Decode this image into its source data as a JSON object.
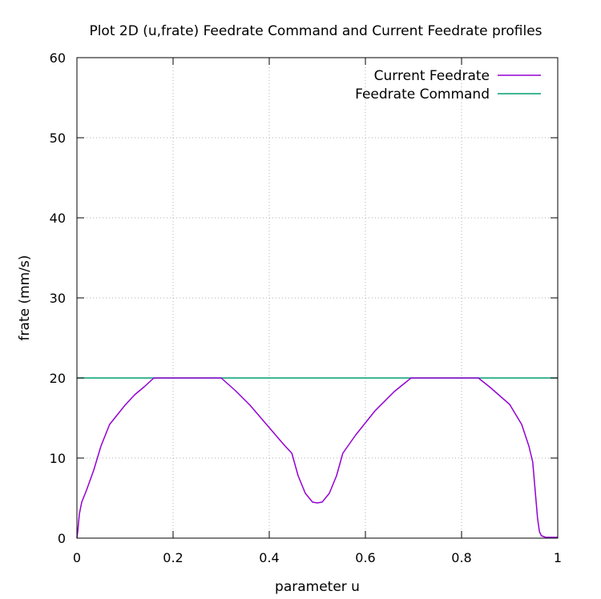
{
  "chart_data": {
    "type": "line",
    "title": "Plot 2D (u,frate) Feedrate Command and Current Feedrate profiles",
    "xlabel": "parameter u",
    "ylabel": "frate (mm/s)",
    "xlim": [
      0,
      1
    ],
    "ylim": [
      0,
      60
    ],
    "xticks": [
      0,
      0.2,
      0.4,
      0.6,
      0.8,
      1
    ],
    "xtick_labels": [
      "0",
      "0.2",
      "0.4",
      "0.6",
      "0.8",
      "1"
    ],
    "yticks": [
      0,
      10,
      20,
      30,
      40,
      50,
      60
    ],
    "ytick_labels": [
      "0",
      "10",
      "20",
      "30",
      "40",
      "50",
      "60"
    ],
    "grid": true,
    "legend_position": "top-right",
    "series": [
      {
        "name": "Current Feedrate",
        "color": "#9400d3",
        "x": [
          0,
          0.002,
          0.005,
          0.01,
          0.02,
          0.035,
          0.05,
          0.068,
          0.08,
          0.1,
          0.12,
          0.14,
          0.16,
          0.2,
          0.25,
          0.3,
          0.33,
          0.36,
          0.4,
          0.43,
          0.447,
          0.46,
          0.475,
          0.49,
          0.5,
          0.51,
          0.525,
          0.54,
          0.553,
          0.58,
          0.62,
          0.66,
          0.695,
          0.75,
          0.8,
          0.835,
          0.86,
          0.9,
          0.925,
          0.94,
          0.948,
          0.953,
          0.958,
          0.962,
          0.966,
          0.975,
          1
        ],
        "y": [
          0,
          1.0,
          3.0,
          4.5,
          6.0,
          8.5,
          11.5,
          14.2,
          15.1,
          16.6,
          17.9,
          18.9,
          20,
          20,
          20,
          20,
          18.4,
          16.6,
          13.8,
          11.7,
          10.6,
          7.8,
          5.6,
          4.5,
          4.4,
          4.5,
          5.6,
          7.8,
          10.6,
          12.9,
          15.9,
          18.3,
          20,
          20,
          20,
          20,
          18.8,
          16.7,
          14.2,
          11.5,
          9.5,
          6.0,
          2.5,
          0.8,
          0.3,
          0.1,
          0.1
        ]
      },
      {
        "name": "Feedrate Command",
        "color": "#009e73",
        "x": [
          0,
          1
        ],
        "y": [
          20,
          20
        ]
      }
    ]
  }
}
